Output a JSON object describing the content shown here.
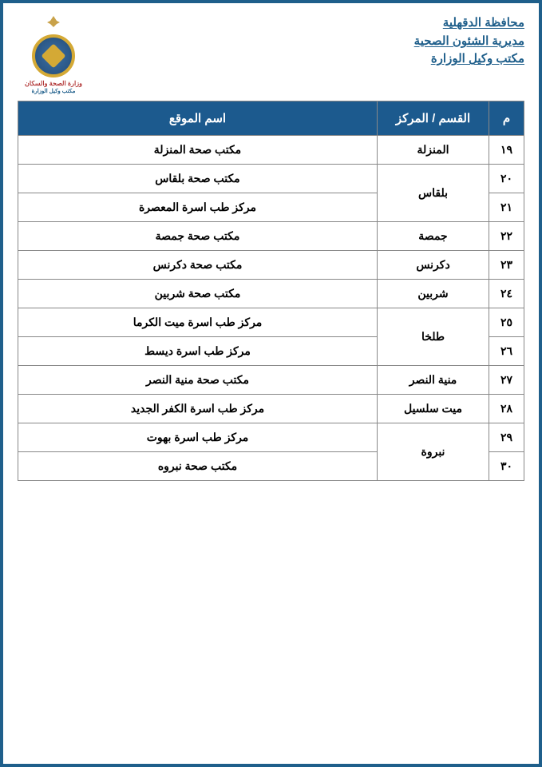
{
  "header": {
    "line1": "محافظة الدقهلية",
    "line2": "مديرية الشئون الصحية",
    "line3": "مكتب وكيل الوزارة"
  },
  "logo": {
    "caption_top": "وزارة الصحة والسكان",
    "caption_bottom": "مكتب وكيل الوزارة"
  },
  "table": {
    "type": "table",
    "columns": {
      "num": "م",
      "district": "القسم / المركز",
      "site": "اسم الموقع"
    },
    "header_bg": "#1c5a8e",
    "header_fg": "#ffffff",
    "border_color": "#888888",
    "cell_font_size": 14,
    "header_font_size": 15,
    "rows": [
      {
        "num": "١٩",
        "district": "المنزلة",
        "site": "مكتب صحة المنزلة",
        "district_rowspan": 1
      },
      {
        "num": "٢٠",
        "district": "بلقاس",
        "site": "مكتب صحة بلقاس",
        "district_rowspan": 2
      },
      {
        "num": "٢١",
        "district": null,
        "site": "مركز طب اسرة المعصرة"
      },
      {
        "num": "٢٢",
        "district": "جمصة",
        "site": "مكتب صحة جمصة",
        "district_rowspan": 1
      },
      {
        "num": "٢٣",
        "district": "دكرنس",
        "site": "مكتب صحة دكرنس",
        "district_rowspan": 1
      },
      {
        "num": "٢٤",
        "district": "شربين",
        "site": "مكتب صحة شربين",
        "district_rowspan": 1
      },
      {
        "num": "٢٥",
        "district": "طلخا",
        "site": "مركز طب اسرة ميت الكرما",
        "district_rowspan": 2
      },
      {
        "num": "٢٦",
        "district": null,
        "site": "مركز طب اسرة ديسط"
      },
      {
        "num": "٢٧",
        "district": "منية النصر",
        "site": "مكتب صحة منية النصر",
        "district_rowspan": 1
      },
      {
        "num": "٢٨",
        "district": "ميت سلسيل",
        "site": "مركز طب اسرة الكفر الجديد",
        "district_rowspan": 1
      },
      {
        "num": "٢٩",
        "district": "نبروة",
        "site": "مركز طب اسرة بهوت",
        "district_rowspan": 2
      },
      {
        "num": "٣٠",
        "district": null,
        "site": "مكتب صحة نبروه"
      }
    ]
  },
  "page_border_color": "#1f5f8b"
}
